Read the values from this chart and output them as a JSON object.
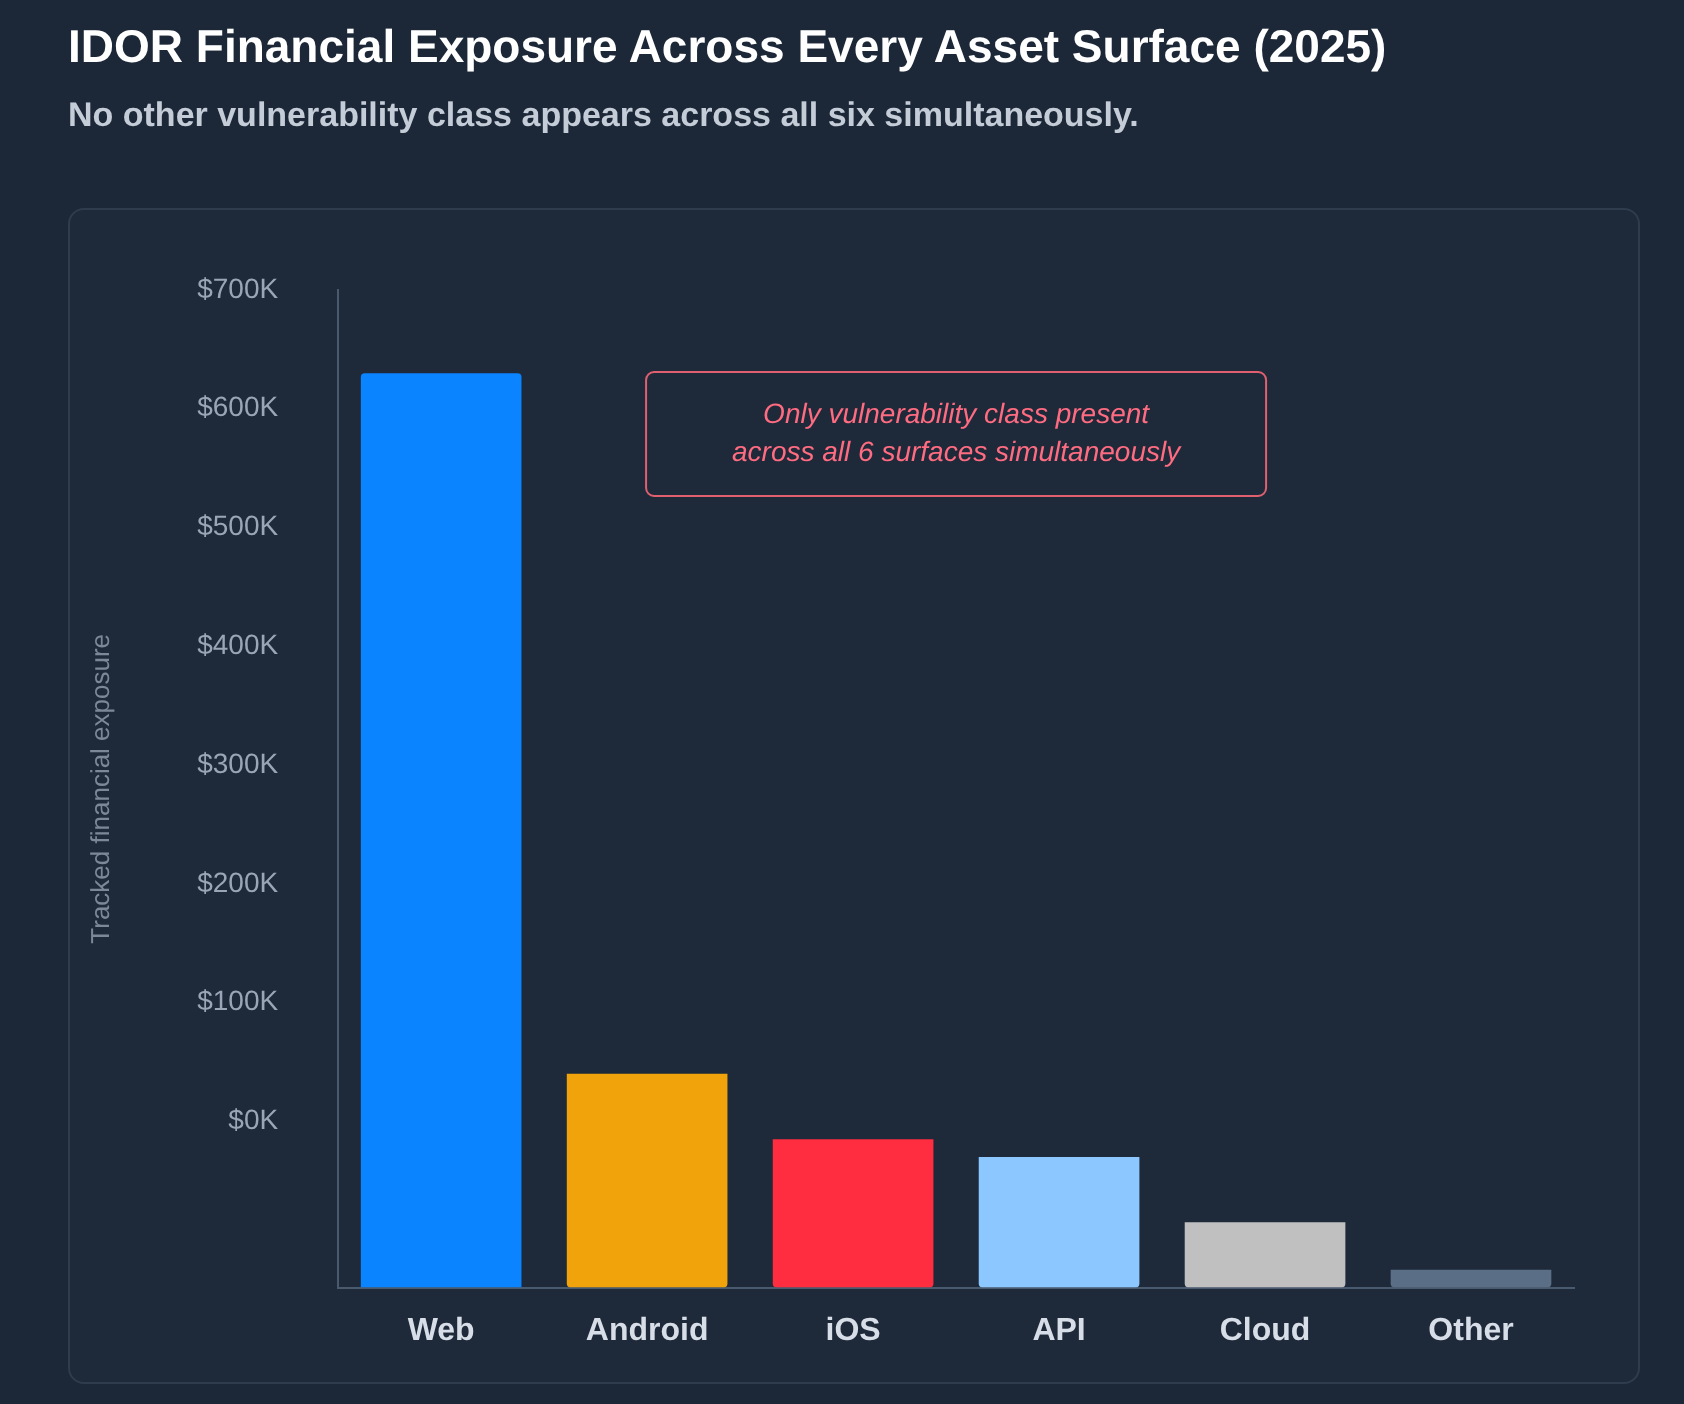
{
  "chart_data": {
    "type": "bar",
    "title": "IDOR Financial Exposure Across Every Asset Surface (2025)",
    "subtitle": "No other vulnerability class appears across all six simultaneously.",
    "ylabel": "Tracked financial exposure",
    "categories": [
      "Web",
      "Android",
      "iOS",
      "API",
      "Cloud",
      "Other"
    ],
    "values": [
      770000,
      180000,
      125000,
      110000,
      55000,
      15000
    ],
    "base": [
      -140000,
      -140000,
      -140000,
      -140000,
      -140000,
      -140000
    ],
    "colors": [
      "#0a84ff",
      "#f0a30a",
      "#ff2d3f",
      "#8cc8ff",
      "#c0c0c0",
      "#5a6e85"
    ],
    "ylim": [
      -140000,
      700000
    ],
    "yticks": [
      {
        "value": 0,
        "label": "$0K"
      },
      {
        "value": 100000,
        "label": "$100K"
      },
      {
        "value": 200000,
        "label": "$200K"
      },
      {
        "value": 300000,
        "label": "$300K"
      },
      {
        "value": 400000,
        "label": "$400K"
      },
      {
        "value": 500000,
        "label": "$500K"
      },
      {
        "value": 600000,
        "label": "$600K"
      },
      {
        "value": 700000,
        "label": "$700K"
      }
    ],
    "annotations": [
      "Only vulnerability class present\nacross all 6 surfaces simultaneously"
    ]
  }
}
